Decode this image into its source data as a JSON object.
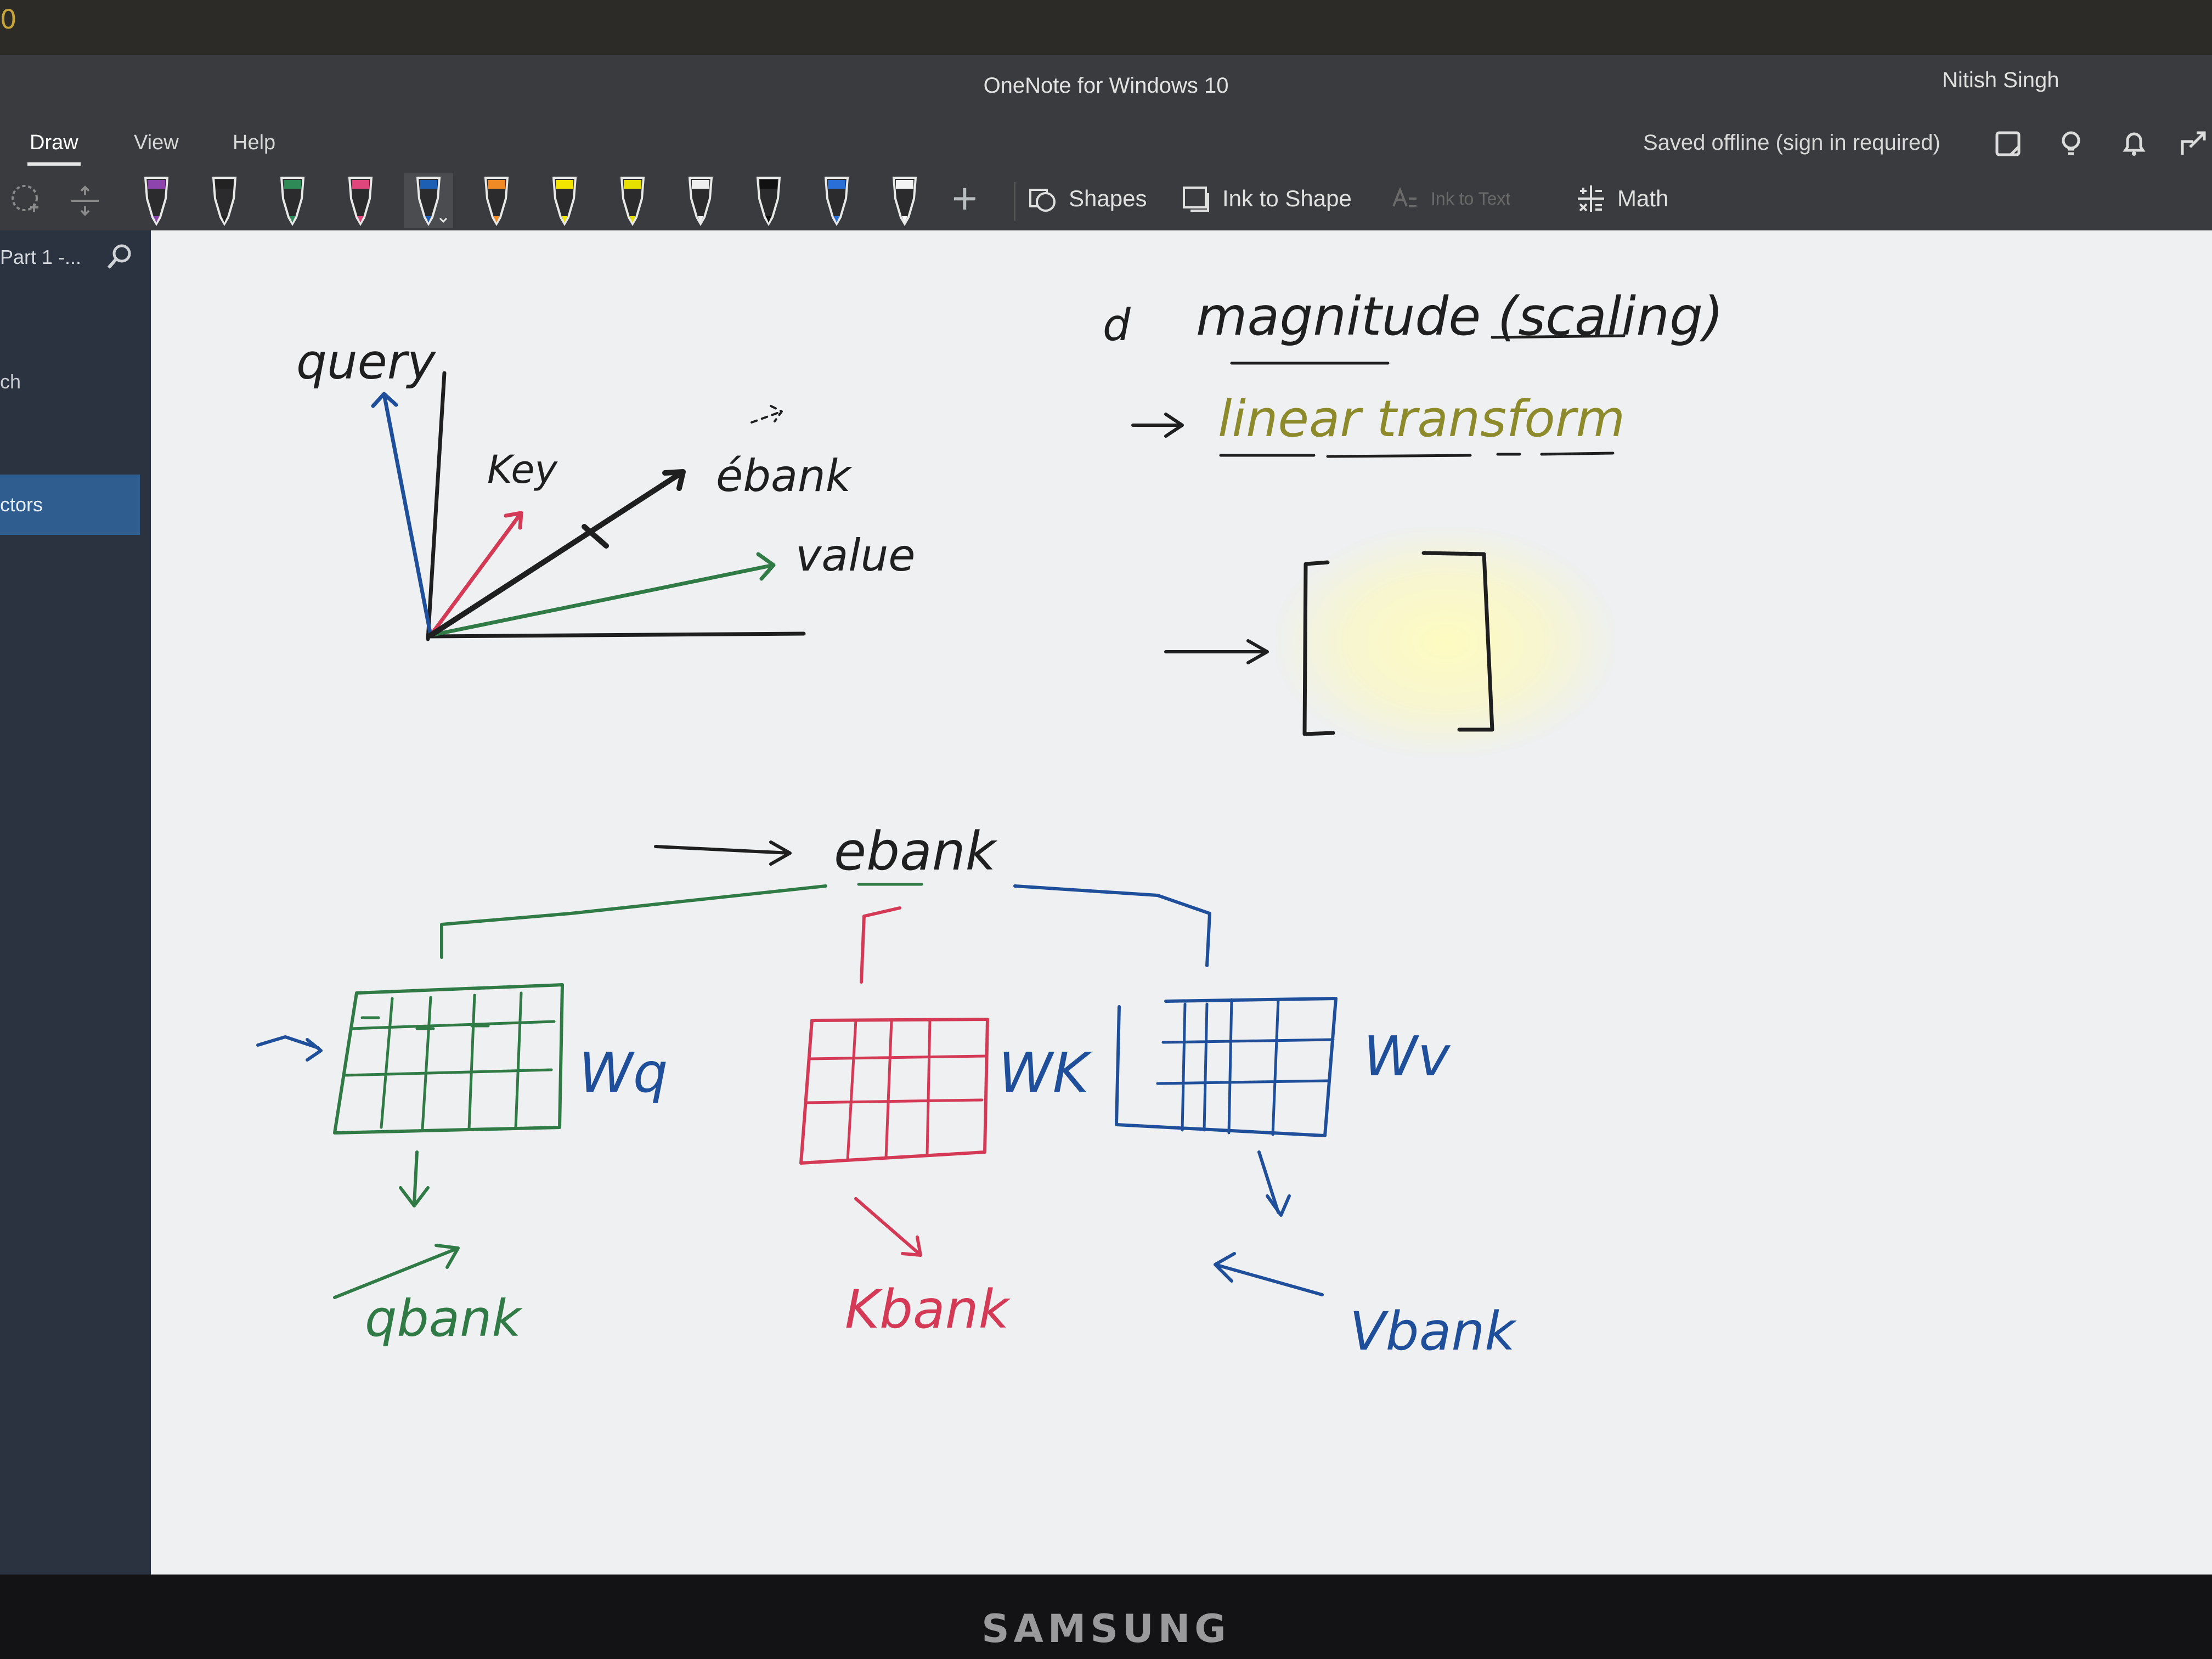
{
  "monitor": {
    "corner_text": "0",
    "brand": "SAMSUNG"
  },
  "window": {
    "title": "OneNote for Windows 10",
    "user": "Nitish Singh"
  },
  "menu": {
    "tabs": [
      {
        "label": "Draw",
        "active": true
      },
      {
        "label": "View",
        "active": false
      },
      {
        "label": "Help",
        "active": false
      }
    ],
    "saved_status": "Saved offline (sign in required)",
    "icons": [
      "sticky-note-icon",
      "lightbulb-icon",
      "bell-icon",
      "share-icon"
    ]
  },
  "toolbar": {
    "pens": [
      {
        "name": "purple-pen",
        "color": "#8e44ad"
      },
      {
        "name": "black-pen",
        "color": "#222222"
      },
      {
        "name": "green-pen",
        "color": "#2e8b57"
      },
      {
        "name": "red-pen",
        "color": "#e0457b"
      },
      {
        "name": "blue-pen",
        "color": "#1d5fb3",
        "selected": true
      },
      {
        "name": "orange-pen",
        "color": "#f08a24"
      },
      {
        "name": "yellow-highlighter",
        "color": "#f2e600"
      },
      {
        "name": "yellow-highlighter-2",
        "color": "#e6e000"
      },
      {
        "name": "white-pen",
        "color": "#eeeeee"
      },
      {
        "name": "black-pen-2",
        "color": "#111111"
      },
      {
        "name": "blue-pen-2",
        "color": "#2a6fd6"
      },
      {
        "name": "white-pen-2",
        "color": "#f4f4f4"
      }
    ],
    "shapes_label": "Shapes",
    "ink_to_shape_label": "Ink to Shape",
    "ink_to_text_label": "Ink to Text",
    "math_label": "Math"
  },
  "sidebar": {
    "header": "Part 1 -...",
    "items": [
      {
        "label": "ch"
      },
      {
        "label": "ctors",
        "selected": true
      }
    ]
  },
  "canvas": {
    "colors": {
      "black": "#1f1f1f",
      "blue": "#1f4f9a",
      "red": "#d43a55",
      "green": "#2f7a45",
      "olive": "#8c8a2a"
    },
    "notes": {
      "query": "query",
      "key": "Key",
      "e_bank_top": "ébank",
      "value": "value",
      "d": "d",
      "magnitude": "magnitude (scaling)",
      "linear": "linear transform",
      "e_bank_mid": "ebank",
      "wq": "Wq",
      "wk": "WK",
      "wv": "Wv",
      "q_bank": "qbank",
      "k_bank": "Kbank",
      "v_bank": "Vbank"
    }
  }
}
